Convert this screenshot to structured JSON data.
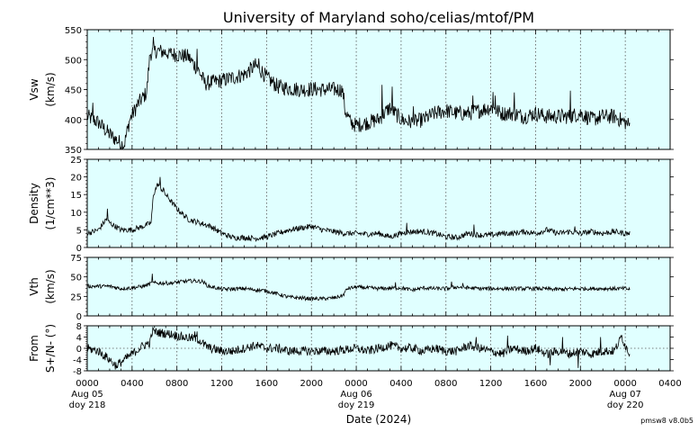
{
  "title": "University of Maryland  soho/celias/mtof/PM",
  "xlabel": "Date (2024)",
  "credit": "pmsw8 v8.0b5",
  "colors": {
    "panel_bg": "#e0ffff",
    "trace": "#000000",
    "grid": "#555555"
  },
  "x_axis": {
    "range_hours": [
      0,
      52
    ],
    "tick_labels": [
      "0000",
      "0400",
      "0800",
      "1200",
      "1600",
      "2000",
      "0000",
      "0400",
      "0800",
      "1200",
      "1600",
      "2000",
      "0000",
      "0400"
    ],
    "date_labels": [
      {
        "at_hour": 0,
        "date": "Aug 05",
        "doy": "doy 218"
      },
      {
        "at_hour": 24,
        "date": "Aug 06",
        "doy": "doy 219"
      },
      {
        "at_hour": 48,
        "date": "Aug 07",
        "doy": "doy 220"
      }
    ]
  },
  "chart_data": [
    {
      "type": "line",
      "ylabel": [
        "Vsw",
        "(km/s)"
      ],
      "ylim": [
        350,
        550
      ],
      "yticks": [
        350,
        400,
        450,
        500,
        550
      ],
      "grid": "vertical dotted",
      "data_end_hour": 48.4,
      "profile": [
        [
          0,
          405
        ],
        [
          1,
          395
        ],
        [
          2,
          375
        ],
        [
          3,
          360
        ],
        [
          3.3,
          358
        ],
        [
          3.8,
          400
        ],
        [
          4.5,
          425
        ],
        [
          5.3,
          445
        ],
        [
          5.6,
          510
        ],
        [
          6.2,
          515
        ],
        [
          7,
          512
        ],
        [
          8,
          508
        ],
        [
          9,
          505
        ],
        [
          10,
          480
        ],
        [
          10.5,
          460
        ],
        [
          12,
          465
        ],
        [
          13,
          470
        ],
        [
          14,
          475
        ],
        [
          15,
          490
        ],
        [
          15.6,
          480
        ],
        [
          16,
          470
        ],
        [
          17,
          455
        ],
        [
          18,
          452
        ],
        [
          19,
          450
        ],
        [
          20,
          451
        ],
        [
          21,
          450
        ],
        [
          22,
          450
        ],
        [
          22.8,
          450
        ],
        [
          23,
          415
        ],
        [
          23.5,
          395
        ],
        [
          24,
          390
        ],
        [
          25,
          395
        ],
        [
          26,
          400
        ],
        [
          27,
          420
        ],
        [
          28,
          400
        ],
        [
          29,
          395
        ],
        [
          30,
          400
        ],
        [
          31,
          410
        ],
        [
          32,
          415
        ],
        [
          33,
          410
        ],
        [
          34,
          410
        ],
        [
          35,
          415
        ],
        [
          36,
          420
        ],
        [
          37,
          410
        ],
        [
          38,
          410
        ],
        [
          39,
          405
        ],
        [
          40,
          410
        ],
        [
          41,
          405
        ],
        [
          42,
          405
        ],
        [
          43,
          405
        ],
        [
          44,
          410
        ],
        [
          45,
          400
        ],
        [
          46,
          405
        ],
        [
          47,
          405
        ],
        [
          48,
          395
        ],
        [
          48.4,
          390
        ]
      ],
      "noise": 13,
      "spikes": [
        [
          0.5,
          428
        ],
        [
          5.9,
          538
        ],
        [
          7.3,
          518
        ],
        [
          9.8,
          518
        ],
        [
          15.3,
          502
        ],
        [
          22.8,
          452
        ],
        [
          26.3,
          458
        ],
        [
          27.2,
          455
        ],
        [
          29.1,
          422
        ],
        [
          34.4,
          440
        ],
        [
          36.2,
          446
        ],
        [
          36.4,
          440
        ],
        [
          38.1,
          445
        ],
        [
          43.1,
          448
        ]
      ]
    },
    {
      "type": "line",
      "ylabel": [
        "Density",
        "(1/cm**3)"
      ],
      "ylim": [
        0,
        25
      ],
      "yticks": [
        0,
        5,
        10,
        15,
        20,
        25
      ],
      "grid": "vertical dotted",
      "data_end_hour": 48.4,
      "profile": [
        [
          0,
          4
        ],
        [
          1,
          5
        ],
        [
          1.7,
          8
        ],
        [
          2,
          7
        ],
        [
          3,
          5
        ],
        [
          4,
          5
        ],
        [
          5,
          6
        ],
        [
          5.7,
          7
        ],
        [
          5.9,
          15
        ],
        [
          6.3,
          18
        ],
        [
          7,
          15
        ],
        [
          8,
          11
        ],
        [
          9,
          8
        ],
        [
          10,
          7
        ],
        [
          11,
          6
        ],
        [
          12,
          4
        ],
        [
          13,
          2.8
        ],
        [
          14,
          2.8
        ],
        [
          15,
          2.6
        ],
        [
          16,
          3
        ],
        [
          17,
          4
        ],
        [
          18,
          5
        ],
        [
          19,
          5.5
        ],
        [
          20,
          6
        ],
        [
          21,
          5
        ],
        [
          22,
          4.5
        ],
        [
          23,
          4
        ],
        [
          24,
          4
        ],
        [
          25,
          3.8
        ],
        [
          26,
          4
        ],
        [
          27,
          3
        ],
        [
          28,
          4
        ],
        [
          29,
          4.5
        ],
        [
          30,
          4.5
        ],
        [
          31,
          4
        ],
        [
          32,
          3
        ],
        [
          33,
          2.8
        ],
        [
          34,
          4
        ],
        [
          35,
          3.5
        ],
        [
          36,
          3.5
        ],
        [
          37,
          4
        ],
        [
          38,
          4
        ],
        [
          39,
          4.5
        ],
        [
          40,
          4
        ],
        [
          41,
          5
        ],
        [
          42,
          4
        ],
        [
          43,
          4.5
        ],
        [
          44,
          4
        ],
        [
          45,
          4.5
        ],
        [
          46,
          4
        ],
        [
          47,
          4.5
        ],
        [
          48,
          4
        ],
        [
          48.4,
          4
        ]
      ],
      "noise": 0.8,
      "spikes": [
        [
          1.8,
          11
        ],
        [
          6.5,
          20
        ],
        [
          6.8,
          17
        ],
        [
          28.5,
          7
        ],
        [
          34.5,
          6.5
        ],
        [
          43.5,
          6
        ]
      ]
    },
    {
      "type": "line",
      "ylabel": [
        "Vth",
        "(km/s)"
      ],
      "ylim": [
        0,
        75
      ],
      "yticks": [
        0,
        25,
        50,
        75
      ],
      "grid": "vertical dotted",
      "data_end_hour": 48.4,
      "profile": [
        [
          0,
          38
        ],
        [
          2,
          38
        ],
        [
          3,
          35
        ],
        [
          4,
          36
        ],
        [
          5,
          38
        ],
        [
          5.8,
          42
        ],
        [
          6.5,
          42
        ],
        [
          7.5,
          42
        ],
        [
          8.5,
          44
        ],
        [
          9.5,
          45
        ],
        [
          10.3,
          44
        ],
        [
          10.8,
          38
        ],
        [
          11.5,
          36
        ],
        [
          12,
          34
        ],
        [
          14,
          35
        ],
        [
          16,
          32
        ],
        [
          17,
          28
        ],
        [
          18,
          24
        ],
        [
          19,
          23
        ],
        [
          20,
          22
        ],
        [
          21,
          22
        ],
        [
          22,
          23
        ],
        [
          22.8,
          26
        ],
        [
          23.2,
          35
        ],
        [
          24,
          37
        ],
        [
          25,
          36
        ],
        [
          26,
          35
        ],
        [
          28,
          36
        ],
        [
          29,
          33
        ],
        [
          30,
          36
        ],
        [
          31,
          35
        ],
        [
          32,
          35
        ],
        [
          33,
          37
        ],
        [
          34,
          36
        ],
        [
          35,
          35
        ],
        [
          36,
          35
        ],
        [
          38,
          35
        ],
        [
          40,
          35
        ],
        [
          42,
          34
        ],
        [
          44,
          35
        ],
        [
          46,
          35
        ],
        [
          48,
          35
        ],
        [
          48.4,
          34
        ]
      ],
      "noise": 2.5,
      "spikes": [
        [
          5.8,
          54
        ],
        [
          27.5,
          43
        ],
        [
          32.5,
          44
        ],
        [
          33.5,
          42
        ]
      ]
    },
    {
      "type": "line",
      "ylabel": [
        "From",
        "S+/N- (°)"
      ],
      "ylim": [
        -8,
        8
      ],
      "yticks": [
        -8,
        -4,
        0,
        4,
        8
      ],
      "grid": "vertical dotted plus zero line",
      "data_end_hour": 48.4,
      "profile": [
        [
          0,
          0
        ],
        [
          1,
          -1
        ],
        [
          2,
          -4
        ],
        [
          2.5,
          -6
        ],
        [
          3,
          -5
        ],
        [
          4,
          -2
        ],
        [
          5,
          1
        ],
        [
          5.6,
          2
        ],
        [
          5.8,
          6
        ],
        [
          6.5,
          5.5
        ],
        [
          7.5,
          5
        ],
        [
          8.5,
          4
        ],
        [
          9.5,
          3.5
        ],
        [
          10,
          3
        ],
        [
          10.5,
          1
        ],
        [
          11,
          0
        ],
        [
          12,
          -1
        ],
        [
          13,
          -1
        ],
        [
          14,
          0
        ],
        [
          15,
          1
        ],
        [
          16,
          0
        ],
        [
          17,
          0
        ],
        [
          18,
          -1
        ],
        [
          19,
          -1
        ],
        [
          20,
          -1
        ],
        [
          22,
          -1
        ],
        [
          24,
          0
        ],
        [
          25,
          -1
        ],
        [
          26,
          0
        ],
        [
          27,
          1
        ],
        [
          28,
          0
        ],
        [
          29,
          0
        ],
        [
          30,
          -1
        ],
        [
          31,
          0
        ],
        [
          32,
          -1
        ],
        [
          33,
          -1
        ],
        [
          34,
          1
        ],
        [
          35,
          0
        ],
        [
          36,
          -1
        ],
        [
          37,
          -2
        ],
        [
          38,
          0
        ],
        [
          39,
          -1
        ],
        [
          40,
          0
        ],
        [
          41,
          -2
        ],
        [
          42,
          -1
        ],
        [
          43,
          -2
        ],
        [
          44,
          -1
        ],
        [
          45,
          -2
        ],
        [
          46,
          -1
        ],
        [
          47,
          -1
        ],
        [
          47.7,
          4
        ],
        [
          48,
          1
        ],
        [
          48.4,
          -2
        ]
      ],
      "noise": 1.6,
      "spikes": [
        [
          2.7,
          -7
        ],
        [
          6.0,
          6.5
        ],
        [
          9.8,
          6
        ],
        [
          9.6,
          6
        ],
        [
          34.7,
          4
        ],
        [
          37.5,
          4.5
        ],
        [
          41.3,
          -6
        ],
        [
          42.4,
          4
        ],
        [
          43.8,
          -7
        ],
        [
          45.8,
          4
        ],
        [
          47.6,
          4.5
        ]
      ]
    }
  ]
}
